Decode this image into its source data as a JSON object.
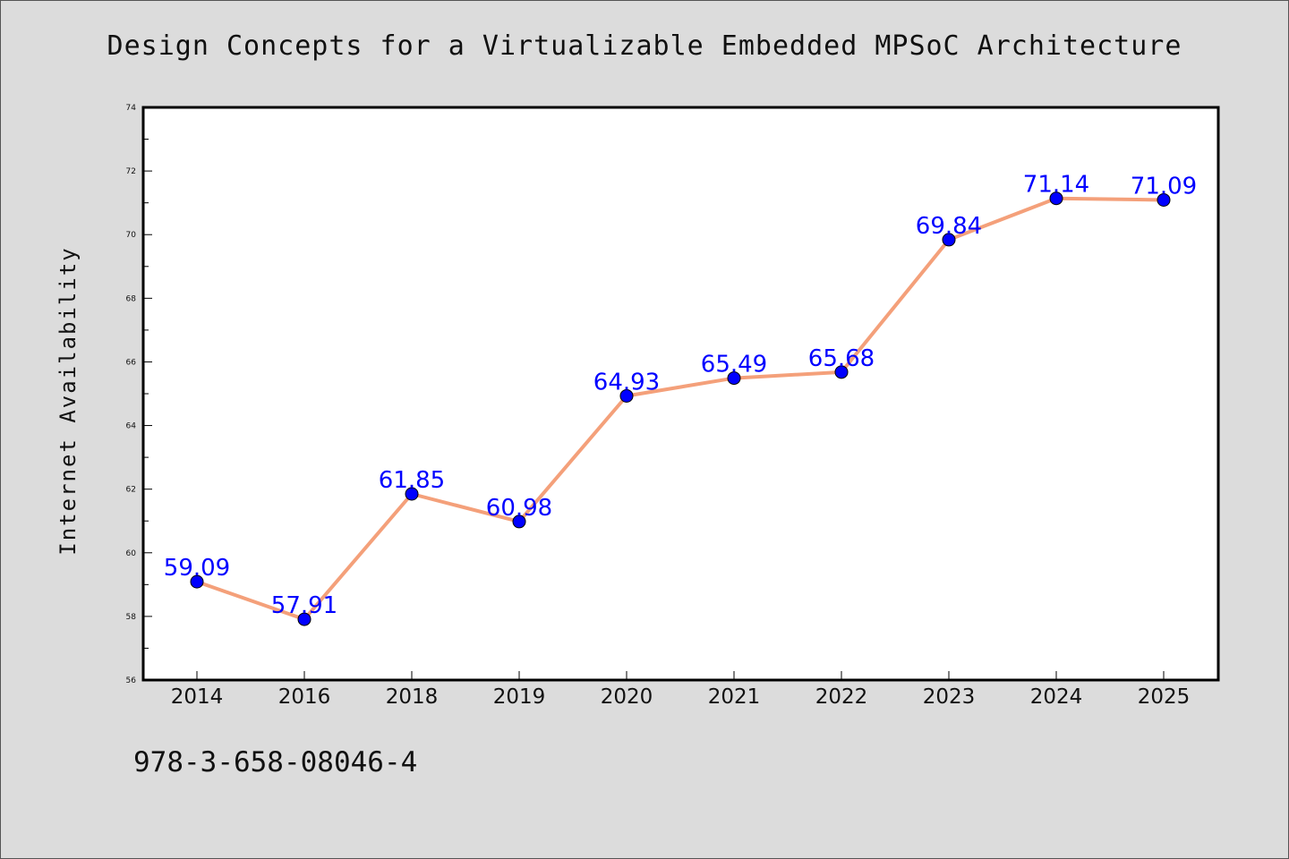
{
  "title": "Design Concepts for a Virtualizable Embedded MPSoC Architecture",
  "footer_text": "978-3-658-08046-4",
  "colors": {
    "background": "#dcdcdc",
    "plot_background": "#ffffff",
    "line": "#f4a07a",
    "marker": "#0000ff",
    "data_label": "#0000ff"
  },
  "chart_data": {
    "type": "line",
    "title": "Design Concepts for a Virtualizable Embedded MPSoC Architecture",
    "xlabel": "",
    "ylabel": "Internet Availability",
    "categories": [
      "2014",
      "2016",
      "2018",
      "2019",
      "2020",
      "2021",
      "2022",
      "2023",
      "2024",
      "2025"
    ],
    "series": [
      {
        "values": [
          59.09,
          57.91,
          61.85,
          60.98,
          64.93,
          65.49,
          65.68,
          69.84,
          71.14,
          71.09
        ]
      }
    ],
    "data_labels": [
      "59.09",
      "57.91",
      "61.85",
      "60.98",
      "64.93",
      "65.49",
      "65.68",
      "69.84",
      "71.14",
      "71.09"
    ],
    "ylim": [
      56,
      74
    ],
    "yticks": [
      56,
      58,
      60,
      62,
      64,
      66,
      68,
      70,
      72,
      74
    ],
    "ytick_labels": [
      "56",
      "58",
      "60",
      "62",
      "64",
      "66",
      "68",
      "70",
      "72",
      "74"
    ],
    "grid": false,
    "legend": "none"
  }
}
